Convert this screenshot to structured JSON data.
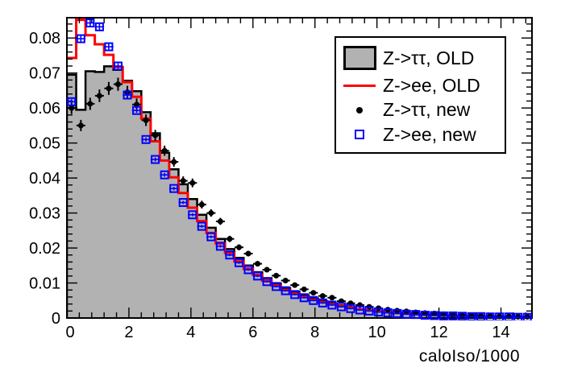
{
  "colors": {
    "gray_fill": "#b2b2b2",
    "hist_outline": "#000000",
    "red_line": "#ff0000",
    "blue_marker": "#0000ff",
    "black_marker": "#000000",
    "background": "#ffffff"
  },
  "legend": {
    "position": "top-right",
    "entries": [
      {
        "label": "Z->ττ, OLD",
        "marker": "gray-filled-box"
      },
      {
        "label": "Z->ee, OLD",
        "marker": "red-line"
      },
      {
        "label": "Z->ττ, new",
        "marker": "black-filled-circle"
      },
      {
        "label": "Z->ee, new",
        "marker": "blue-open-square"
      }
    ]
  },
  "chart_data": {
    "type": "bar",
    "subtype": "overlaid-histograms-root-style",
    "title": "",
    "xlabel": "caloIso/1000",
    "ylabel": "",
    "x_range": [
      0,
      15
    ],
    "y_range": [
      0,
      0.0858
    ],
    "bin_width": 0.3,
    "bin_start": 0,
    "grid": false,
    "x_ticks": [
      {
        "value": 0,
        "label": "0"
      },
      {
        "value": 2,
        "label": "2"
      },
      {
        "value": 4,
        "label": "4"
      },
      {
        "value": 6,
        "label": "6"
      },
      {
        "value": 8,
        "label": "8"
      },
      {
        "value": 10,
        "label": "10"
      },
      {
        "value": 12,
        "label": "12"
      },
      {
        "value": 14,
        "label": "14"
      }
    ],
    "x_minor_step": 0.4,
    "y_ticks": [
      {
        "value": 0,
        "label": "0"
      },
      {
        "value": 0.01,
        "label": "0.01"
      },
      {
        "value": 0.02,
        "label": "0.02"
      },
      {
        "value": 0.03,
        "label": "0.03"
      },
      {
        "value": 0.04,
        "label": "0.04"
      },
      {
        "value": 0.05,
        "label": "0.05"
      },
      {
        "value": 0.06,
        "label": "0.06"
      },
      {
        "value": 0.07,
        "label": "0.07"
      },
      {
        "value": 0.08,
        "label": "0.08"
      }
    ],
    "y_minor_step": 0.002,
    "series": [
      {
        "name": "Z->ττ, OLD",
        "style": "filled-step-histogram",
        "fill": "#b2b2b2",
        "stroke": "#000000",
        "values": [
          0.0695,
          0.0595,
          0.0705,
          0.0703,
          0.0719,
          0.0709,
          0.0678,
          0.0648,
          0.0588,
          0.0528,
          0.0472,
          0.0425,
          0.0382,
          0.034,
          0.0295,
          0.0258,
          0.0226,
          0.0197,
          0.0172,
          0.015,
          0.0131,
          0.0114,
          0.0099,
          0.0086,
          0.0075,
          0.0065,
          0.0056,
          0.0048,
          0.0042,
          0.0036,
          0.0031,
          0.0026,
          0.0022,
          0.0019,
          0.0016,
          0.0014,
          0.0012,
          0.001,
          0.0009,
          0.0008,
          0.0007,
          0.0006,
          0.0005,
          0.0004,
          0.0004,
          0.0003,
          0.0003,
          0.0002,
          0.0002,
          0.0002
        ]
      },
      {
        "name": "Z->ee, OLD",
        "style": "line-step-histogram",
        "stroke": "#ff0000",
        "values": [
          0.0743,
          0.0852,
          0.0808,
          0.0782,
          0.0752,
          0.0717,
          0.0674,
          0.0632,
          0.057,
          0.0505,
          0.045,
          0.0402,
          0.0357,
          0.0315,
          0.0277,
          0.0243,
          0.0213,
          0.0186,
          0.0162,
          0.0141,
          0.0123,
          0.0107,
          0.0093,
          0.008,
          0.007,
          0.006,
          0.0052,
          0.0045,
          0.0039,
          0.0034,
          0.0029,
          0.0025,
          0.0022,
          0.0019,
          0.0016,
          0.0014,
          0.0012,
          0.0011,
          0.0009,
          0.0008,
          0.0007,
          0.0006,
          0.0006,
          0.0005,
          0.0004,
          0.0004,
          0.0003,
          0.0003,
          0.0003,
          0.0002
        ]
      },
      {
        "name": "Z->ττ, new",
        "style": "points-filled-circle-errorbars",
        "color": "#000000",
        "values": [
          0.06,
          0.055,
          0.0612,
          0.0635,
          0.0656,
          0.0668,
          0.0645,
          0.061,
          0.0565,
          0.0522,
          0.0478,
          0.0446,
          0.0392,
          0.0386,
          0.0324,
          0.03,
          0.0276,
          0.0226,
          0.0202,
          0.0184,
          0.0155,
          0.0138,
          0.0121,
          0.0107,
          0.0094,
          0.0082,
          0.0072,
          0.0063,
          0.0058,
          0.0048,
          0.0042,
          0.0037,
          0.0032,
          0.0028,
          0.0024,
          0.0021,
          0.0019,
          0.0016,
          0.0014,
          0.0013,
          0.0011,
          0.001,
          0.0009,
          0.0008,
          0.0007,
          0.0006,
          0.0005,
          0.0005,
          0.0004,
          0.0004
        ]
      },
      {
        "name": "Z->ee, new",
        "style": "points-open-square-errorbars",
        "color": "#0000ff",
        "values": [
          0.0618,
          0.0798,
          0.0843,
          0.0832,
          0.0775,
          0.072,
          0.0637,
          0.0593,
          0.051,
          0.0453,
          0.0409,
          0.037,
          0.033,
          0.0295,
          0.0262,
          0.0232,
          0.0205,
          0.018,
          0.0158,
          0.0138,
          0.012,
          0.0104,
          0.009,
          0.0078,
          0.0067,
          0.0058,
          0.005,
          0.0043,
          0.0037,
          0.0032,
          0.0027,
          0.0023,
          0.002,
          0.0017,
          0.0015,
          0.0013,
          0.0011,
          0.001,
          0.0008,
          0.0007,
          0.0006,
          0.0006,
          0.0005,
          0.0004,
          0.0004,
          0.0003,
          0.0003,
          0.0003,
          0.0002,
          0.0002
        ]
      }
    ]
  }
}
